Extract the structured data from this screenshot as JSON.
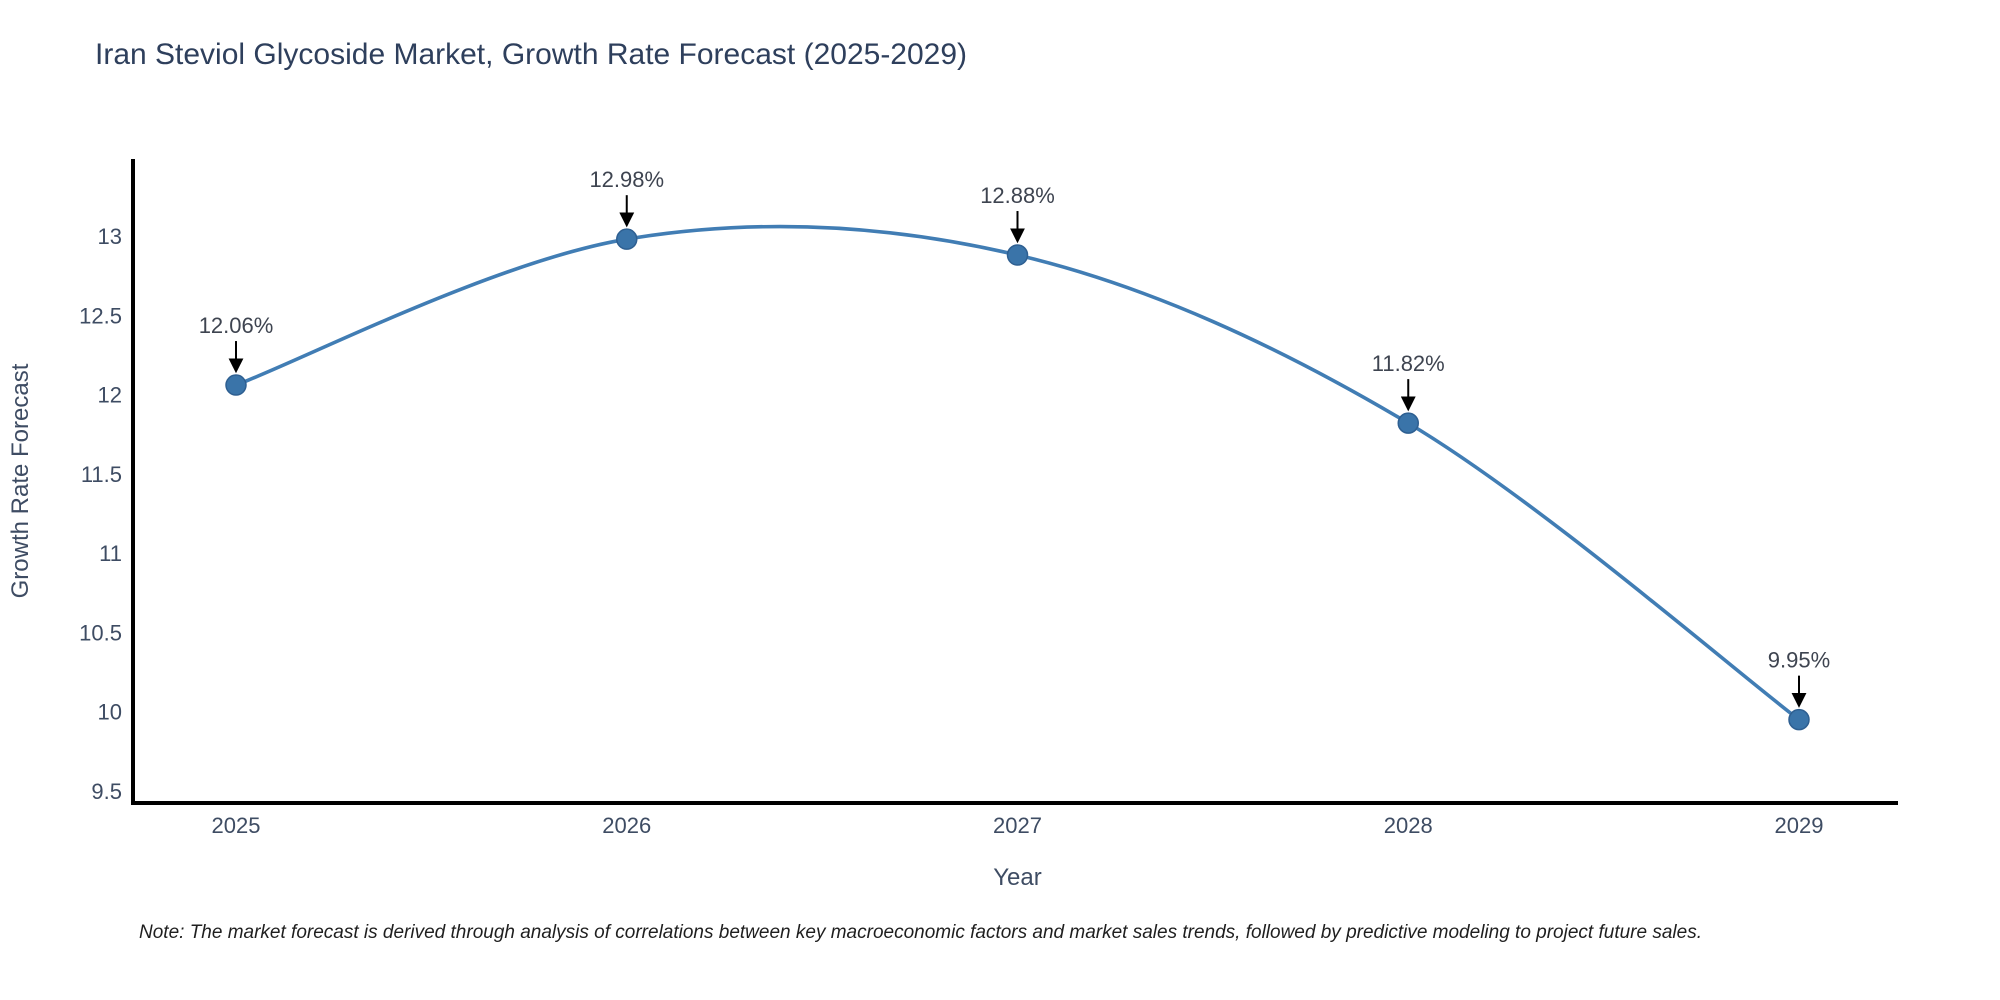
{
  "page": {
    "title": "Iran Steviol Glycoside Market, Growth Rate Forecast (2025-2029)",
    "note": "Note: The market forecast is derived through analysis of correlations between key macroeconomic factors and market sales trends, followed by predictive modeling to project future sales."
  },
  "chart_data": {
    "type": "line",
    "line_shape": "spline",
    "title": "Iran Steviol Glycoside Market, Growth Rate Forecast (2025-2029)",
    "xlabel": "Year",
    "ylabel": "Growth Rate Forecast",
    "x": [
      2025,
      2026,
      2027,
      2028,
      2029
    ],
    "series": [
      {
        "name": "Growth Rate Forecast",
        "values": [
          12.06,
          12.98,
          12.88,
          11.82,
          9.95
        ]
      }
    ],
    "point_labels": [
      "12.06%",
      "12.98%",
      "12.88%",
      "11.82%",
      "9.95%"
    ],
    "x_tick_labels": [
      "2025",
      "2026",
      "2027",
      "2028",
      "2029"
    ],
    "y_tick_values": [
      9.5,
      10,
      10.5,
      11,
      11.5,
      12,
      12.5,
      13
    ],
    "y_tick_labels": [
      "9.5",
      "10",
      "10.5",
      "11",
      "11.5",
      "12",
      "12.5",
      "13"
    ],
    "ylim": [
      9.42,
      13.49
    ],
    "grid": false,
    "legend_position": "none",
    "annotation_style": "arrow-down-to-point",
    "colors": {
      "line": "#417db4",
      "marker_fill": "#3a74a9",
      "marker_edge": "#2e5f91",
      "axis_line": "#000000",
      "tick_label": "#3e4c63",
      "axis_title": "#3e4c63",
      "chart_title": "#2e3f5c",
      "annotation_text": "#3e4450",
      "arrow": "#000000",
      "background": "#ffffff"
    }
  }
}
